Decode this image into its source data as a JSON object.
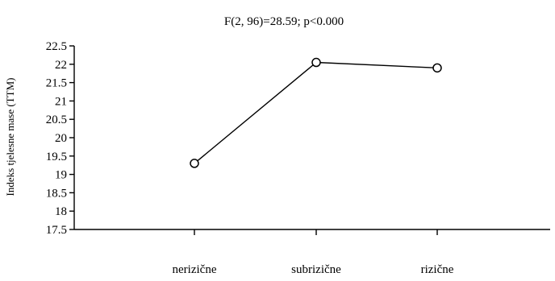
{
  "chart_data": {
    "type": "line",
    "title": "F(2, 96)=28.59; p<0.000",
    "ylabel": "Indeks tjelesne mase (TTM)",
    "xlabel": "",
    "categories": [
      "nerizične",
      "subrizične",
      "rizične"
    ],
    "series": [
      {
        "values": [
          19.3,
          22.05,
          21.9
        ]
      }
    ],
    "ylim": [
      17.5,
      22.5
    ],
    "yticks": [
      "22.5",
      "22",
      "21.5",
      "21",
      "20.5",
      "20",
      "19.5",
      "19",
      "18.5",
      "18",
      "17.5"
    ],
    "marker": "open-circle",
    "grid": false,
    "legend": "none",
    "colors": {
      "line": "#000000",
      "marker_fill": "#ffffff"
    }
  }
}
